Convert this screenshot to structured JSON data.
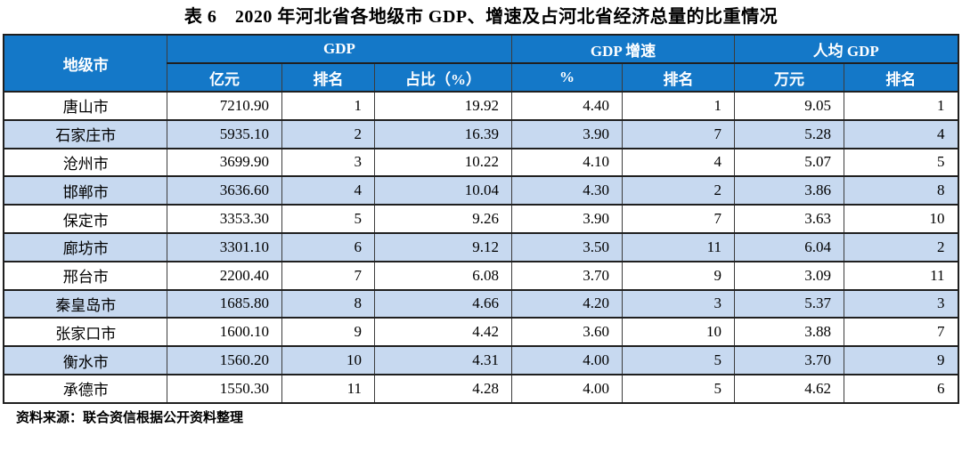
{
  "title": "表 6　2020 年河北省各地级市 GDP、增速及占河北省经济总量的比重情况",
  "footer": "资料来源：联合资信根据公开资料整理",
  "colors": {
    "header_bg": "#1478C8",
    "header_text": "#FFFFFF",
    "alt_row_bg": "#C7D9F0",
    "grid_line": "#1f1f1f",
    "body_text": "#000000"
  },
  "table": {
    "header": {
      "city_label": "地级市",
      "groups": [
        {
          "label": "GDP",
          "span": 3
        },
        {
          "label": "GDP 增速",
          "span": 2
        },
        {
          "label": "人均 GDP",
          "span": 2
        }
      ],
      "subheaders": [
        "亿元",
        "排名",
        "占比（%）",
        "%",
        "排名",
        "万元",
        "排名"
      ]
    },
    "rows": [
      {
        "city": "唐山市",
        "gdp": "7210.90",
        "gdp_rank": "1",
        "gdp_share": "19.92",
        "growth": "4.40",
        "growth_rank": "1",
        "per_capita_gdp": "9.05",
        "per_capita_rank": "1"
      },
      {
        "city": "石家庄市",
        "gdp": "5935.10",
        "gdp_rank": "2",
        "gdp_share": "16.39",
        "growth": "3.90",
        "growth_rank": "7",
        "per_capita_gdp": "5.28",
        "per_capita_rank": "4"
      },
      {
        "city": "沧州市",
        "gdp": "3699.90",
        "gdp_rank": "3",
        "gdp_share": "10.22",
        "growth": "4.10",
        "growth_rank": "4",
        "per_capita_gdp": "5.07",
        "per_capita_rank": "5"
      },
      {
        "city": "邯郸市",
        "gdp": "3636.60",
        "gdp_rank": "4",
        "gdp_share": "10.04",
        "growth": "4.30",
        "growth_rank": "2",
        "per_capita_gdp": "3.86",
        "per_capita_rank": "8"
      },
      {
        "city": "保定市",
        "gdp": "3353.30",
        "gdp_rank": "5",
        "gdp_share": "9.26",
        "growth": "3.90",
        "growth_rank": "7",
        "per_capita_gdp": "3.63",
        "per_capita_rank": "10"
      },
      {
        "city": "廊坊市",
        "gdp": "3301.10",
        "gdp_rank": "6",
        "gdp_share": "9.12",
        "growth": "3.50",
        "growth_rank": "11",
        "per_capita_gdp": "6.04",
        "per_capita_rank": "2"
      },
      {
        "city": "邢台市",
        "gdp": "2200.40",
        "gdp_rank": "7",
        "gdp_share": "6.08",
        "growth": "3.70",
        "growth_rank": "9",
        "per_capita_gdp": "3.09",
        "per_capita_rank": "11"
      },
      {
        "city": "秦皇岛市",
        "gdp": "1685.80",
        "gdp_rank": "8",
        "gdp_share": "4.66",
        "growth": "4.20",
        "growth_rank": "3",
        "per_capita_gdp": "5.37",
        "per_capita_rank": "3"
      },
      {
        "city": "张家口市",
        "gdp": "1600.10",
        "gdp_rank": "9",
        "gdp_share": "4.42",
        "growth": "3.60",
        "growth_rank": "10",
        "per_capita_gdp": "3.88",
        "per_capita_rank": "7"
      },
      {
        "city": "衡水市",
        "gdp": "1560.20",
        "gdp_rank": "10",
        "gdp_share": "4.31",
        "growth": "4.00",
        "growth_rank": "5",
        "per_capita_gdp": "3.70",
        "per_capita_rank": "9"
      },
      {
        "city": "承德市",
        "gdp": "1550.30",
        "gdp_rank": "11",
        "gdp_share": "4.28",
        "growth": "4.00",
        "growth_rank": "5",
        "per_capita_gdp": "4.62",
        "per_capita_rank": "6"
      }
    ]
  }
}
